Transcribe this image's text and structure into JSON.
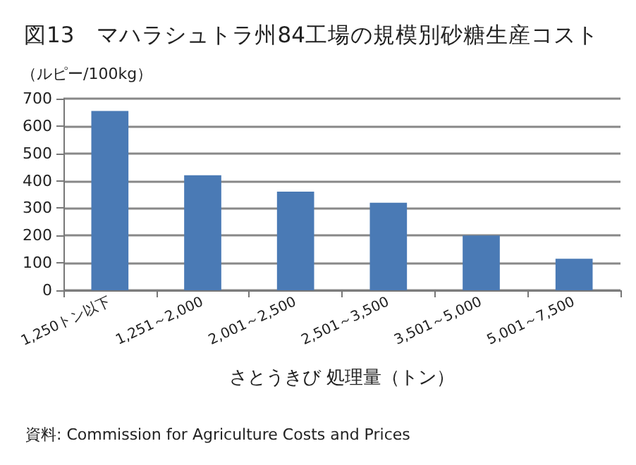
{
  "chart_data": {
    "type": "bar",
    "title": "図13　マハラシュトラ州84工場の規模別砂糖生産コスト",
    "ylabel": "（ルピー/100kg）",
    "xlabel": "さとうきび 処理量（トン）",
    "annotations": [
      "資料: Commission for Agriculture Costs and Prices"
    ],
    "categories": [
      "1,250トン以下",
      "1,251～2,000",
      "2,001～2,500",
      "2,501～3,500",
      "3,501～5,000",
      "5,001～7,500"
    ],
    "values": [
      655,
      420,
      360,
      320,
      200,
      115
    ],
    "color": "#4a7ab5",
    "ylim": [
      0,
      700
    ],
    "yticks": [
      0,
      100,
      200,
      300,
      400,
      500,
      600,
      700
    ],
    "grid": "y"
  }
}
